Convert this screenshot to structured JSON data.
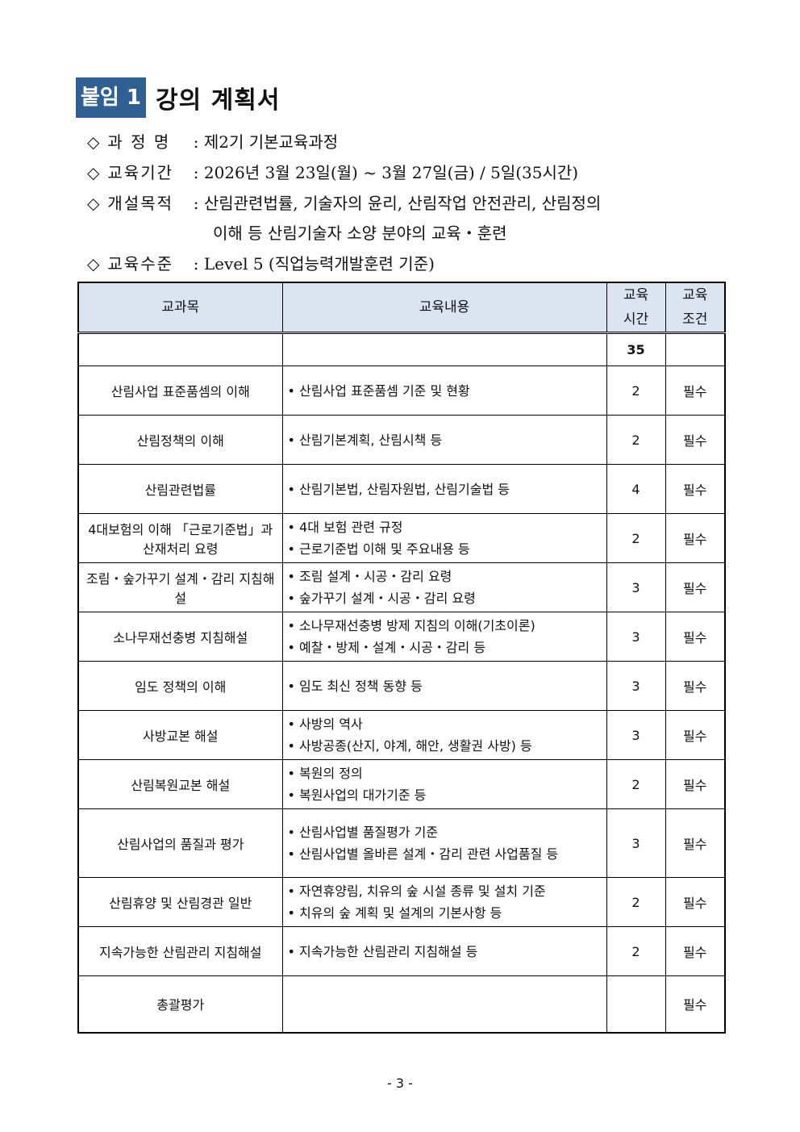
{
  "header": {
    "badge": "붙임 1",
    "title": "강의 계획서"
  },
  "info": [
    {
      "label": "과 정 명",
      "value": "제2기 기본교육과정"
    },
    {
      "label": "교육기간",
      "value": "2026년 3월 23일(월) ~ 3월 27일(금) / 5일(35시간)"
    },
    {
      "label": "개설목적",
      "value": "산림관련법률, 기술자의 윤리, 산림작업 안전관리, 산림정의",
      "value2": "이해 등 산림기술자 소양 분야의 교육・훈련"
    },
    {
      "label": "교육수준",
      "value": "Level 5 (직업능력개발훈련 기준)"
    }
  ],
  "table": {
    "headers": [
      "교과목",
      "교육내용",
      "교육\n시간",
      "교육\n조건"
    ],
    "header_time": [
      "교육",
      "시간"
    ],
    "header_cond": [
      "교육",
      "조건"
    ],
    "total_hours": "35",
    "rows": [
      {
        "subject": "산림사업 표준품셈의 이해",
        "content": [
          "산림사업 표준품셈 기준 및 현황"
        ],
        "hours": "2",
        "cond": "필수"
      },
      {
        "subject": "산림정책의 이해",
        "content": [
          "산림기본계획, 산림시책 등"
        ],
        "hours": "2",
        "cond": "필수"
      },
      {
        "subject": "산림관련법률",
        "content": [
          "산림기본법, 산림자원법, 산림기술법 등"
        ],
        "hours": "4",
        "cond": "필수"
      },
      {
        "subject": "4대보험의 이해 「근로기준법」과 산재처리 요령",
        "content": [
          "4대 보험 관련 규정",
          "근로기준법 이해 및 주요내용 등"
        ],
        "hours": "2",
        "cond": "필수"
      },
      {
        "subject": "조림・숲가꾸기 설계・감리 지침해설",
        "content": [
          "조림 설계・시공・감리 요령",
          "숲가꾸기 설계・시공・감리 요령"
        ],
        "hours": "3",
        "cond": "필수"
      },
      {
        "subject": "소나무재선충병 지침해설",
        "content": [
          "소나무재선충병 방제 지침의 이해(기초이론)",
          "예찰・방제・설계・시공・감리 등"
        ],
        "hours": "3",
        "cond": "필수"
      },
      {
        "subject": "임도 정책의 이해",
        "content": [
          "임도 최신 정책 동향 등"
        ],
        "hours": "3",
        "cond": "필수"
      },
      {
        "subject": "사방교본 해설",
        "content": [
          "사방의 역사",
          "사방공종(산지, 야계, 해안, 생활권 사방) 등"
        ],
        "hours": "3",
        "cond": "필수"
      },
      {
        "subject": "산림복원교본 해설",
        "content": [
          "복원의 정의",
          "복원사업의 대가기준 등"
        ],
        "hours": "2",
        "cond": "필수"
      },
      {
        "subject": "산림사업의 품질과 평가",
        "content": [
          "산림사업별 품질평가 기준",
          "산림사업별 올바른 설계・감리 관련 사업품질 등"
        ],
        "hours": "3",
        "cond": "필수"
      },
      {
        "subject": "산림휴양 및 산림경관 일반",
        "content": [
          "자연휴양림, 치유의 숲 시설 종류 및 설치 기준",
          "치유의 숲 계획 및 설계의 기본사항 등"
        ],
        "hours": "2",
        "cond": "필수"
      },
      {
        "subject": "지속가능한 산림관리 지침해설",
        "content": [
          "지속가능한 산림관리 지침해설 등"
        ],
        "hours": "2",
        "cond": "필수"
      },
      {
        "subject": "총괄평가",
        "content": [],
        "hours": "",
        "cond": "필수"
      }
    ]
  },
  "footer": {
    "page": "- 3 -"
  }
}
